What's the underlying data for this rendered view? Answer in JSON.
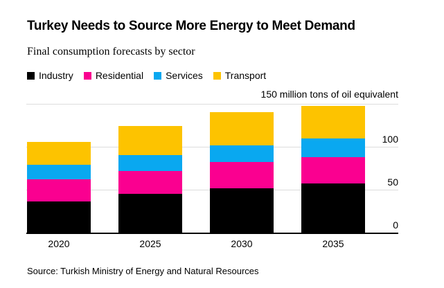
{
  "header": {
    "title": "Turkey Needs to Source More Energy to Meet Demand",
    "subtitle": "Final consumption forecasts by sector"
  },
  "footer": {
    "source": "Source: Turkish Ministry of Energy and Natural Resources"
  },
  "colors": {
    "industry": "#000000",
    "residential": "#fa0090",
    "services": "#09a8f0",
    "transport": "#fdc300",
    "gridline": "#dcdcdc",
    "axis": "#000000",
    "background": "#ffffff",
    "text": "#000000"
  },
  "chart_data": {
    "type": "bar",
    "stacked": true,
    "title": "Turkey Needs to Source More Energy to Meet Demand",
    "subtitle": "Final consumption forecasts by sector",
    "unit_label": "150 million tons of oil equivalent",
    "categories": [
      "2020",
      "2025",
      "2030",
      "2035"
    ],
    "series": [
      {
        "name": "Industry",
        "color": "#000000",
        "values": [
          36,
          45,
          52,
          57
        ]
      },
      {
        "name": "Residential",
        "color": "#fa0090",
        "values": [
          26,
          27,
          30,
          31
        ]
      },
      {
        "name": "Services",
        "color": "#09a8f0",
        "values": [
          17,
          18,
          20,
          22
        ]
      },
      {
        "name": "Transport",
        "color": "#fdc300",
        "values": [
          27,
          34,
          38,
          38
        ]
      }
    ],
    "totals": [
      106,
      124,
      140,
      148
    ],
    "y_axis": {
      "min": 0,
      "max": 150,
      "gridline_values": [
        150,
        100,
        50
      ],
      "tick_labels": [
        "100",
        "50",
        "0"
      ],
      "labels_position": "right"
    },
    "xlabel": "",
    "ylabel": "million tons of oil equivalent",
    "legend_position": "top-left",
    "grid": true
  }
}
